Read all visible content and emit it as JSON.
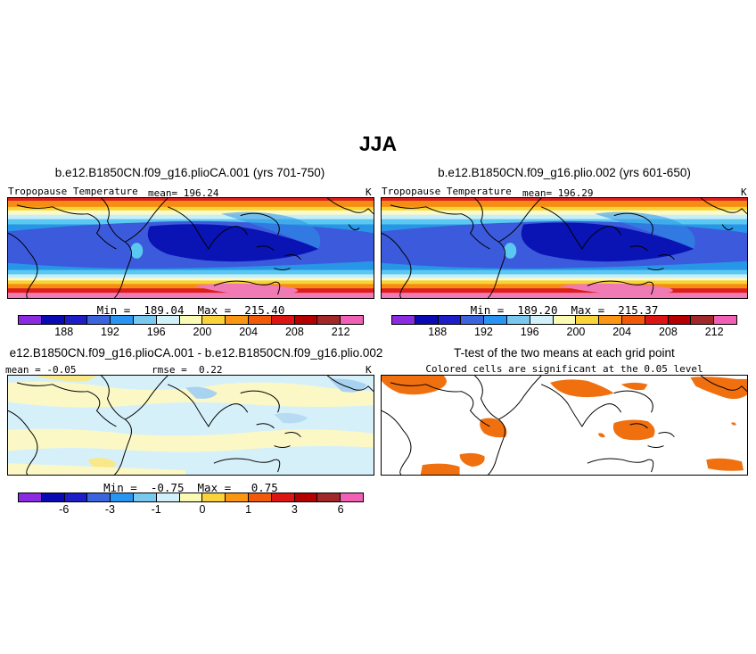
{
  "main_title": "JJA",
  "panels": {
    "top_left": {
      "title": "b.e12.B1850CN.f09_g16.plioCA.001 (yrs 701-750)",
      "variable": "Tropopause Temperature",
      "mean_label": "mean= 196.24",
      "unit": "K",
      "stats": "Min =  189.04  Max =  215.40"
    },
    "top_right": {
      "title": "b.e12.B1850CN.f09_g16.plio.002 (yrs 601-650)",
      "variable": "Tropopause Temperature",
      "mean_label": "mean= 196.29",
      "unit": "K",
      "stats": "Min =  189.20  Max =  215.37"
    },
    "bottom_left": {
      "title": "e12.B1850CN.f09_g16.plioCA.001 - b.e12.B1850CN.f09_g16.plio.002",
      "mean_label": "mean = -0.05",
      "rmse_label": "rmse =  0.22",
      "unit": "K",
      "stats": "Min =  -0.75  Max =   0.75"
    },
    "bottom_right": {
      "title": "T-test of the two means at each grid point",
      "subtitle": "Colored cells are significant at the 0.05 level",
      "significant_color": "#f07010"
    }
  },
  "colorbar": {
    "colors": [
      "#8a2be2",
      "#0a0ab4",
      "#1e1ec8",
      "#3c64dc",
      "#2896f0",
      "#78c8f0",
      "#d2f0fa",
      "#fafab4",
      "#fad23c",
      "#fa9614",
      "#f05a0a",
      "#dc1414",
      "#b40000",
      "#a02828",
      "#f060b4"
    ],
    "abs_ticks": [
      "188",
      "192",
      "196",
      "200",
      "204",
      "208",
      "212"
    ],
    "diff_ticks": [
      "-6",
      "-3",
      "-1",
      "0",
      "1",
      "3",
      "6"
    ]
  },
  "map_colors": {
    "land_outline": "#000000",
    "pink": "#f07ab4",
    "red": "#dc1e1e",
    "orange": "#f58c14",
    "yellow": "#fad232",
    "pale_yellow": "#fafac8",
    "cyan_light": "#c8eefa",
    "cyan": "#5ac8f0",
    "blue_mid": "#2896e6",
    "blue": "#3c5adc",
    "navy": "#0a14b4",
    "light_blue_diff": "#d6f0fa",
    "cream_diff": "#fbf8c6",
    "yellow_diff": "#f8e88a",
    "blue_diff": "#a8d2f0"
  }
}
